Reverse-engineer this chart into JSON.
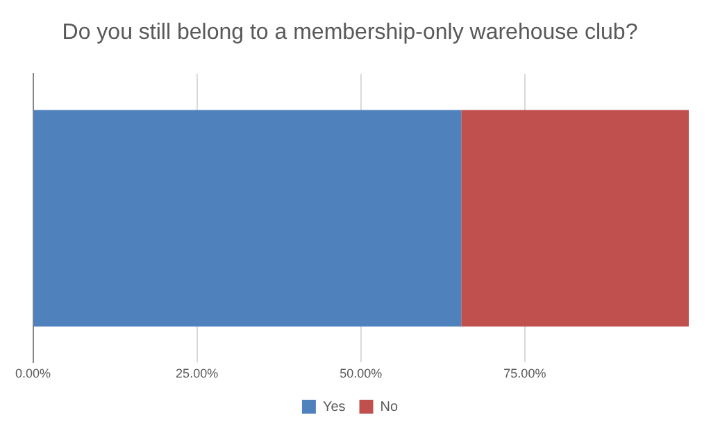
{
  "chart_data": {
    "type": "bar",
    "title": "Do you still belong to a membership-only warehouse club?",
    "orientation": "horizontal",
    "stacked": true,
    "categories": [
      null
    ],
    "series": [
      {
        "name": "Yes",
        "color": "#4f81bd",
        "values": [
          65.3
        ]
      },
      {
        "name": "No",
        "color": "#c0504d",
        "values": [
          34.7
        ]
      }
    ],
    "xlim": [
      0,
      100
    ],
    "xticks": [
      {
        "value": 0,
        "label": "0.00%"
      },
      {
        "value": 25,
        "label": "25.00%"
      },
      {
        "value": 50,
        "label": "50.00%"
      },
      {
        "value": 75,
        "label": "75.00%"
      }
    ],
    "grid": "x",
    "legend": "bottom"
  }
}
